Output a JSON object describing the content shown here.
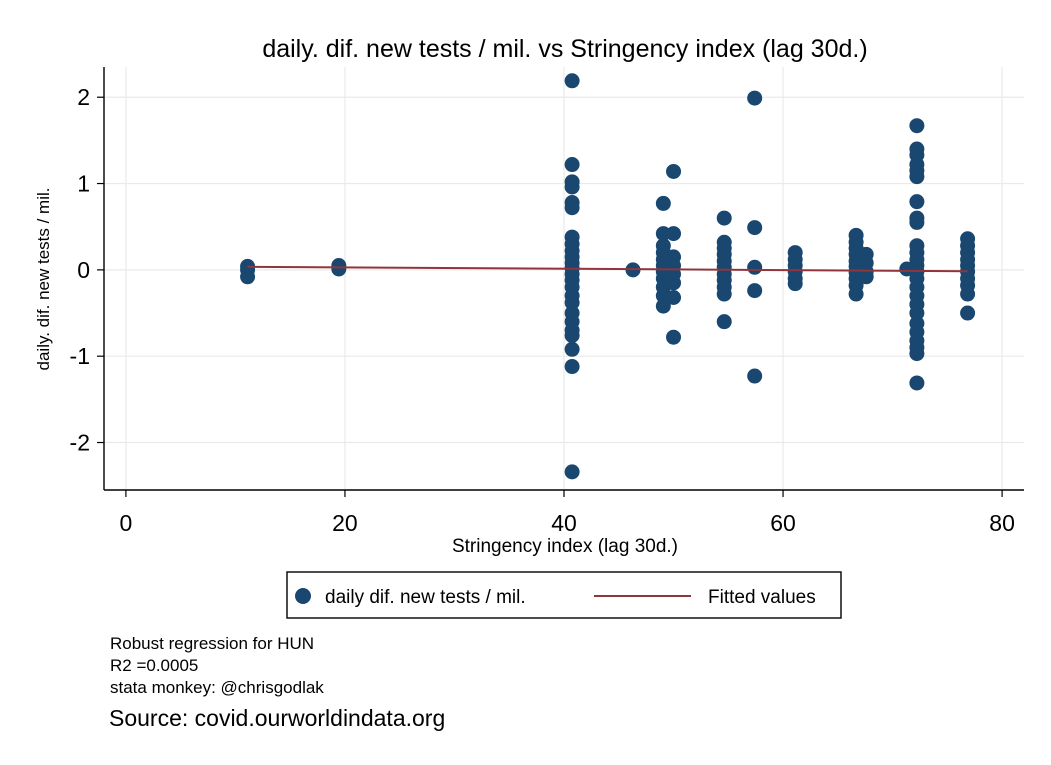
{
  "chart_data": {
    "type": "scatter",
    "title": "daily. dif. new tests / mil. vs Stringency index (lag 30d.)",
    "xlabel": "Stringency index (lag 30d.)",
    "ylabel": "daily. dif. new tests / mil.",
    "xlim": [
      -2,
      82
    ],
    "ylim": [
      -2.55,
      2.35
    ],
    "xticks": [
      "0",
      "20",
      "40",
      "60",
      "80"
    ],
    "yticks": [
      "-2",
      "-1",
      "0",
      "1",
      "2"
    ],
    "grid": true,
    "legend_position": "bottom",
    "series": [
      {
        "name": "daily dif. new tests / mil.",
        "type": "scatter",
        "color": "#1a476f",
        "points": [
          [
            11.11,
            0.04
          ],
          [
            11.11,
            0.0
          ],
          [
            11.11,
            -0.08
          ],
          [
            19.44,
            0.05
          ],
          [
            19.44,
            0.01
          ],
          [
            40.74,
            2.19
          ],
          [
            40.74,
            1.22
          ],
          [
            40.74,
            1.02
          ],
          [
            40.74,
            0.96
          ],
          [
            40.74,
            0.78
          ],
          [
            40.74,
            0.72
          ],
          [
            40.74,
            0.38
          ],
          [
            40.74,
            0.3
          ],
          [
            40.74,
            0.22
          ],
          [
            40.74,
            0.15
          ],
          [
            40.74,
            0.08
          ],
          [
            40.74,
            0.02
          ],
          [
            40.74,
            -0.05
          ],
          [
            40.74,
            -0.12
          ],
          [
            40.74,
            -0.2
          ],
          [
            40.74,
            -0.3
          ],
          [
            40.74,
            -0.38
          ],
          [
            40.74,
            -0.5
          ],
          [
            40.74,
            -0.6
          ],
          [
            40.74,
            -0.7
          ],
          [
            40.74,
            -0.76
          ],
          [
            40.74,
            -0.92
          ],
          [
            40.74,
            -1.12
          ],
          [
            40.74,
            -2.34
          ],
          [
            46.3,
            0.0
          ],
          [
            49.07,
            0.77
          ],
          [
            49.07,
            0.42
          ],
          [
            49.07,
            0.28
          ],
          [
            49.07,
            0.2
          ],
          [
            49.07,
            0.12
          ],
          [
            49.07,
            0.05
          ],
          [
            49.07,
            -0.02
          ],
          [
            49.07,
            -0.1
          ],
          [
            49.07,
            -0.2
          ],
          [
            49.07,
            -0.3
          ],
          [
            49.07,
            -0.42
          ],
          [
            50.0,
            1.14
          ],
          [
            50.0,
            0.42
          ],
          [
            50.0,
            0.15
          ],
          [
            50.0,
            0.05
          ],
          [
            50.0,
            -0.05
          ],
          [
            50.0,
            -0.15
          ],
          [
            50.0,
            -0.32
          ],
          [
            50.0,
            -0.78
          ],
          [
            54.63,
            0.6
          ],
          [
            54.63,
            0.32
          ],
          [
            54.63,
            0.25
          ],
          [
            54.63,
            0.18
          ],
          [
            54.63,
            0.1
          ],
          [
            54.63,
            0.03
          ],
          [
            54.63,
            -0.05
          ],
          [
            54.63,
            -0.12
          ],
          [
            54.63,
            -0.2
          ],
          [
            54.63,
            -0.28
          ],
          [
            54.63,
            -0.6
          ],
          [
            57.41,
            1.99
          ],
          [
            57.41,
            0.49
          ],
          [
            57.41,
            0.03
          ],
          [
            57.41,
            -0.24
          ],
          [
            57.41,
            -1.23
          ],
          [
            61.11,
            0.2
          ],
          [
            61.11,
            0.12
          ],
          [
            61.11,
            0.05
          ],
          [
            61.11,
            -0.02
          ],
          [
            61.11,
            -0.1
          ],
          [
            61.11,
            -0.16
          ],
          [
            66.67,
            0.4
          ],
          [
            66.67,
            0.32
          ],
          [
            66.67,
            0.25
          ],
          [
            66.67,
            0.18
          ],
          [
            66.67,
            0.1
          ],
          [
            66.67,
            0.04
          ],
          [
            66.67,
            -0.03
          ],
          [
            66.67,
            -0.1
          ],
          [
            66.67,
            -0.18
          ],
          [
            66.67,
            -0.28
          ],
          [
            67.59,
            0.18
          ],
          [
            67.59,
            0.08
          ],
          [
            67.59,
            -0.02
          ],
          [
            67.59,
            -0.08
          ],
          [
            71.3,
            0.01
          ],
          [
            72.22,
            1.67
          ],
          [
            72.22,
            1.4
          ],
          [
            72.22,
            1.33
          ],
          [
            72.22,
            1.22
          ],
          [
            72.22,
            1.15
          ],
          [
            72.22,
            1.08
          ],
          [
            72.22,
            0.79
          ],
          [
            72.22,
            0.6
          ],
          [
            72.22,
            0.55
          ],
          [
            72.22,
            0.28
          ],
          [
            72.22,
            0.2
          ],
          [
            72.22,
            0.12
          ],
          [
            72.22,
            0.05
          ],
          [
            72.22,
            -0.02
          ],
          [
            72.22,
            -0.1
          ],
          [
            72.22,
            -0.2
          ],
          [
            72.22,
            -0.3
          ],
          [
            72.22,
            -0.4
          ],
          [
            72.22,
            -0.5
          ],
          [
            72.22,
            -0.62
          ],
          [
            72.22,
            -0.72
          ],
          [
            72.22,
            -0.82
          ],
          [
            72.22,
            -0.9
          ],
          [
            72.22,
            -0.97
          ],
          [
            72.22,
            -1.31
          ],
          [
            76.85,
            0.36
          ],
          [
            76.85,
            0.28
          ],
          [
            76.85,
            0.2
          ],
          [
            76.85,
            0.12
          ],
          [
            76.85,
            0.05
          ],
          [
            76.85,
            -0.02
          ],
          [
            76.85,
            -0.1
          ],
          [
            76.85,
            -0.18
          ],
          [
            76.85,
            -0.28
          ],
          [
            76.85,
            -0.5
          ]
        ]
      },
      {
        "name": "Fitted values",
        "type": "line",
        "color": "#90353b",
        "points": [
          [
            11.11,
            0.035
          ],
          [
            76.85,
            -0.015
          ]
        ]
      }
    ]
  },
  "notes": {
    "method": "Robust regression for HUN",
    "r2": "R2 =0.0005",
    "credit": "stata monkey: @chrisgodlak",
    "source": "Source: covid.ourworldindata.org"
  }
}
